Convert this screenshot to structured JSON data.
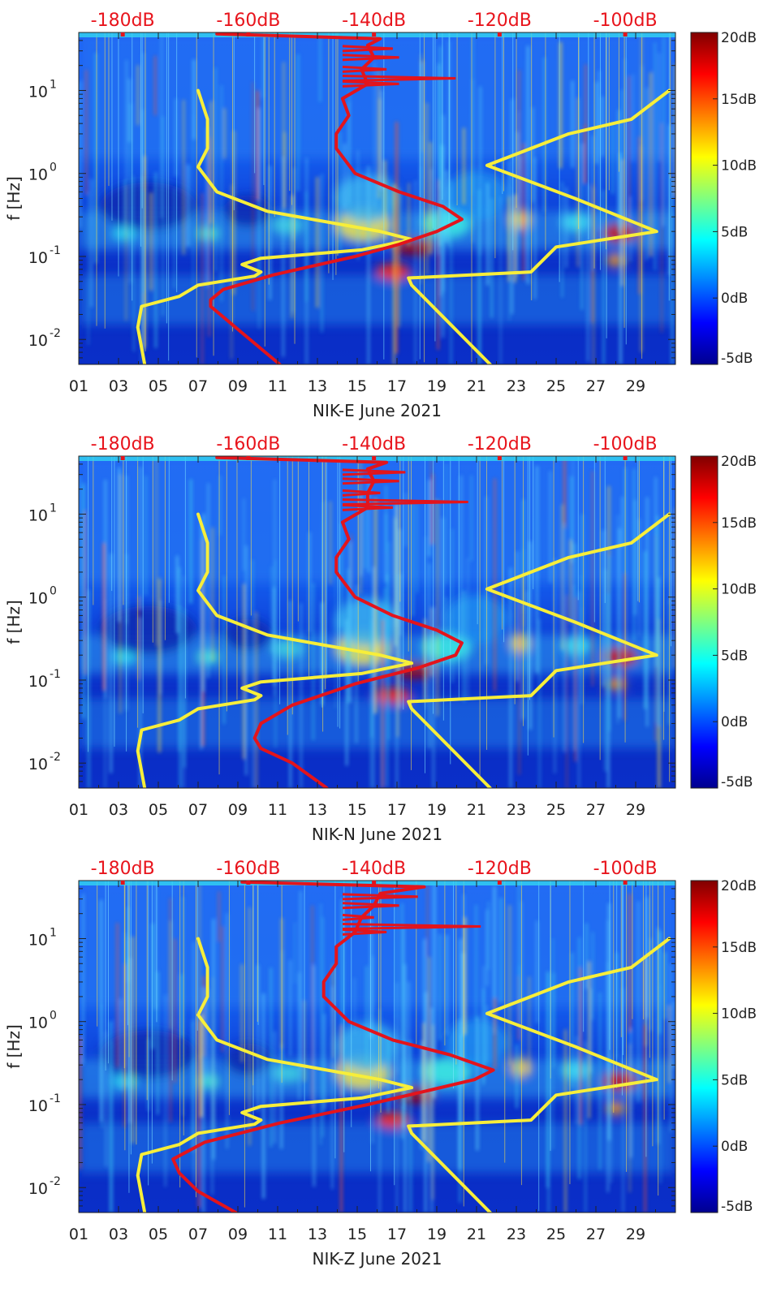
{
  "figure": {
    "colormap_note": "jet",
    "curve_colors": {
      "yellow": "#f7ee3a",
      "red": "#e3141c"
    }
  },
  "chart_data": [
    {
      "type": "heatmap",
      "xlabel": "NIK-E June 2021",
      "ylabel": "f [Hz]",
      "x_ticks": [
        "01",
        "03",
        "05",
        "07",
        "09",
        "11",
        "13",
        "15",
        "17",
        "19",
        "21",
        "23",
        "25",
        "27",
        "29"
      ],
      "x_range_days": [
        1,
        31
      ],
      "y_scale": "log",
      "y_range_hz": [
        0.005,
        50
      ],
      "y_ticks": [
        {
          "value": 0.01,
          "base": "10",
          "exp": "-2"
        },
        {
          "value": 0.1,
          "base": "10",
          "exp": "-1"
        },
        {
          "value": 1,
          "base": "10",
          "exp": "0"
        },
        {
          "value": 10,
          "base": "10",
          "exp": "1"
        }
      ],
      "top_axis_labels": [
        "-180dB",
        "-160dB",
        "-140dB",
        "-120dB",
        "-100dB"
      ],
      "top_axis_range_db": [
        -187,
        -92
      ],
      "colorbar": {
        "ticks": [
          "20dB",
          "15dB",
          "10dB",
          "5dB",
          "0dB",
          "-5dB"
        ],
        "range_db": [
          -5,
          20
        ]
      },
      "series": [
        {
          "color": "yellow",
          "points": [
            [
              -176.5,
              0.005
            ],
            [
              -177.6,
              0.014
            ],
            [
              -177,
              0.025
            ],
            [
              -171,
              0.033
            ],
            [
              -168,
              0.045
            ],
            [
              -159,
              0.058
            ],
            [
              -158,
              0.065
            ],
            [
              -161,
              0.08
            ],
            [
              -158,
              0.095
            ],
            [
              -142,
              0.12
            ],
            [
              -134,
              0.16
            ],
            [
              -139,
              0.2
            ],
            [
              -157,
              0.35
            ],
            [
              -165,
              0.6
            ],
            [
              -168,
              1.2
            ],
            [
              -166.5,
              2
            ],
            [
              -166.5,
              4.5
            ],
            [
              -168,
              10
            ]
          ]
        },
        {
          "color": "yellow",
          "points": [
            [
              -121.5,
              0.005
            ],
            [
              -134,
              0.045
            ],
            [
              -134.5,
              0.055
            ],
            [
              -115,
              0.065
            ],
            [
              -111,
              0.13
            ],
            [
              -95,
              0.2
            ],
            [
              -108,
              0.5
            ],
            [
              -122,
              1.25
            ],
            [
              -109,
              3
            ],
            [
              -99,
              4.5
            ],
            [
              -93,
              10
            ]
          ]
        },
        {
          "color": "red",
          "points": [
            [
              -155,
              0.005
            ],
            [
              -161,
              0.012
            ],
            [
              -166,
              0.025
            ],
            [
              -166,
              0.03
            ],
            [
              -164,
              0.04
            ],
            [
              -156,
              0.06
            ],
            [
              -143,
              0.1
            ],
            [
              -136,
              0.14
            ],
            [
              -130,
              0.2
            ],
            [
              -126,
              0.28
            ],
            [
              -129,
              0.4
            ],
            [
              -136,
              0.6
            ],
            [
              -143,
              1
            ],
            [
              -146,
              2
            ],
            [
              -146,
              3
            ],
            [
              -144,
              5
            ],
            [
              -145,
              8
            ],
            [
              -141,
              12
            ],
            [
              -142,
              18
            ],
            [
              -140,
              25
            ],
            [
              -141,
              35
            ],
            [
              -139,
              42
            ],
            [
              -165,
              48
            ]
          ]
        }
      ]
    },
    {
      "type": "heatmap",
      "xlabel": "NIK-N June 2021",
      "ylabel": "f [Hz]",
      "x_ticks": [
        "01",
        "03",
        "05",
        "07",
        "09",
        "11",
        "13",
        "15",
        "17",
        "19",
        "21",
        "23",
        "25",
        "27",
        "29"
      ],
      "x_range_days": [
        1,
        31
      ],
      "y_scale": "log",
      "y_range_hz": [
        0.005,
        50
      ],
      "y_ticks": [
        {
          "value": 0.01,
          "base": "10",
          "exp": "-2"
        },
        {
          "value": 0.1,
          "base": "10",
          "exp": "-1"
        },
        {
          "value": 1,
          "base": "10",
          "exp": "0"
        },
        {
          "value": 10,
          "base": "10",
          "exp": "1"
        }
      ],
      "top_axis_labels": [
        "-180dB",
        "-160dB",
        "-140dB",
        "-120dB",
        "-100dB"
      ],
      "top_axis_range_db": [
        -187,
        -92
      ],
      "colorbar": {
        "ticks": [
          "20dB",
          "15dB",
          "10dB",
          "5dB",
          "0dB",
          "-5dB"
        ],
        "range_db": [
          -5,
          20
        ]
      },
      "series": [
        {
          "color": "yellow",
          "points": [
            [
              -176.5,
              0.005
            ],
            [
              -177.6,
              0.014
            ],
            [
              -177,
              0.025
            ],
            [
              -171,
              0.033
            ],
            [
              -168,
              0.045
            ],
            [
              -159,
              0.058
            ],
            [
              -158,
              0.065
            ],
            [
              -161,
              0.08
            ],
            [
              -158,
              0.095
            ],
            [
              -142,
              0.12
            ],
            [
              -134,
              0.16
            ],
            [
              -139,
              0.2
            ],
            [
              -157,
              0.35
            ],
            [
              -165,
              0.6
            ],
            [
              -168,
              1.2
            ],
            [
              -166.5,
              2
            ],
            [
              -166.5,
              4.5
            ],
            [
              -168,
              10
            ]
          ]
        },
        {
          "color": "yellow",
          "points": [
            [
              -121.5,
              0.005
            ],
            [
              -134,
              0.045
            ],
            [
              -134.5,
              0.055
            ],
            [
              -115,
              0.065
            ],
            [
              -111,
              0.13
            ],
            [
              -95,
              0.2
            ],
            [
              -108,
              0.5
            ],
            [
              -122,
              1.25
            ],
            [
              -109,
              3
            ],
            [
              -99,
              4.5
            ],
            [
              -93,
              10
            ]
          ]
        },
        {
          "color": "red",
          "points": [
            [
              -147.5,
              0.005
            ],
            [
              -153,
              0.01
            ],
            [
              -158,
              0.015
            ],
            [
              -159,
              0.02
            ],
            [
              -158,
              0.03
            ],
            [
              -153,
              0.05
            ],
            [
              -143,
              0.09
            ],
            [
              -133,
              0.14
            ],
            [
              -127,
              0.2
            ],
            [
              -126,
              0.28
            ],
            [
              -130,
              0.4
            ],
            [
              -137,
              0.6
            ],
            [
              -143,
              1
            ],
            [
              -146,
              2
            ],
            [
              -146,
              3
            ],
            [
              -144,
              5
            ],
            [
              -145,
              8
            ],
            [
              -141,
              12
            ],
            [
              -141,
              18
            ],
            [
              -140,
              25
            ],
            [
              -141,
              35
            ],
            [
              -138,
              42
            ],
            [
              -165,
              48
            ]
          ]
        }
      ]
    },
    {
      "type": "heatmap",
      "xlabel": "NIK-Z June 2021",
      "ylabel": "f [Hz]",
      "x_ticks": [
        "01",
        "03",
        "05",
        "07",
        "09",
        "11",
        "13",
        "15",
        "17",
        "19",
        "21",
        "23",
        "25",
        "27",
        "29"
      ],
      "x_range_days": [
        1,
        31
      ],
      "y_scale": "log",
      "y_range_hz": [
        0.005,
        50
      ],
      "y_ticks": [
        {
          "value": 0.01,
          "base": "10",
          "exp": "-2"
        },
        {
          "value": 0.1,
          "base": "10",
          "exp": "-1"
        },
        {
          "value": 1,
          "base": "10",
          "exp": "0"
        },
        {
          "value": 10,
          "base": "10",
          "exp": "1"
        }
      ],
      "top_axis_labels": [
        "-180dB",
        "-160dB",
        "-140dB",
        "-120dB",
        "-100dB"
      ],
      "top_axis_range_db": [
        -187,
        -92
      ],
      "colorbar": {
        "ticks": [
          "20dB",
          "15dB",
          "10dB",
          "5dB",
          "0dB",
          "-5dB"
        ],
        "range_db": [
          -5,
          20
        ]
      },
      "series": [
        {
          "color": "yellow",
          "points": [
            [
              -176.5,
              0.005
            ],
            [
              -177.6,
              0.014
            ],
            [
              -177,
              0.025
            ],
            [
              -171,
              0.033
            ],
            [
              -168,
              0.045
            ],
            [
              -159,
              0.058
            ],
            [
              -158,
              0.065
            ],
            [
              -161,
              0.08
            ],
            [
              -158,
              0.095
            ],
            [
              -142,
              0.12
            ],
            [
              -134,
              0.16
            ],
            [
              -139,
              0.2
            ],
            [
              -157,
              0.35
            ],
            [
              -165,
              0.6
            ],
            [
              -168,
              1.2
            ],
            [
              -166.5,
              2
            ],
            [
              -166.5,
              4.5
            ],
            [
              -168,
              10
            ]
          ]
        },
        {
          "color": "yellow",
          "points": [
            [
              -121.5,
              0.005
            ],
            [
              -134,
              0.045
            ],
            [
              -134.5,
              0.055
            ],
            [
              -115,
              0.065
            ],
            [
              -111,
              0.13
            ],
            [
              -95,
              0.2
            ],
            [
              -108,
              0.5
            ],
            [
              -122,
              1.25
            ],
            [
              -109,
              3
            ],
            [
              -99,
              4.5
            ],
            [
              -93,
              10
            ]
          ]
        },
        {
          "color": "red",
          "points": [
            [
              -162,
              0.005
            ],
            [
              -168,
              0.009
            ],
            [
              -171,
              0.015
            ],
            [
              -172,
              0.022
            ],
            [
              -167,
              0.035
            ],
            [
              -155,
              0.06
            ],
            [
              -141,
              0.1
            ],
            [
              -131,
              0.15
            ],
            [
              -124,
              0.2
            ],
            [
              -121,
              0.26
            ],
            [
              -128,
              0.4
            ],
            [
              -137,
              0.6
            ],
            [
              -144,
              1
            ],
            [
              -148,
              2
            ],
            [
              -148,
              3
            ],
            [
              -146,
              5
            ],
            [
              -146,
              8
            ],
            [
              -143,
              12
            ],
            [
              -142,
              18
            ],
            [
              -140,
              25
            ],
            [
              -139,
              35
            ],
            [
              -132,
              42
            ],
            [
              -161,
              48
            ]
          ]
        }
      ]
    }
  ]
}
